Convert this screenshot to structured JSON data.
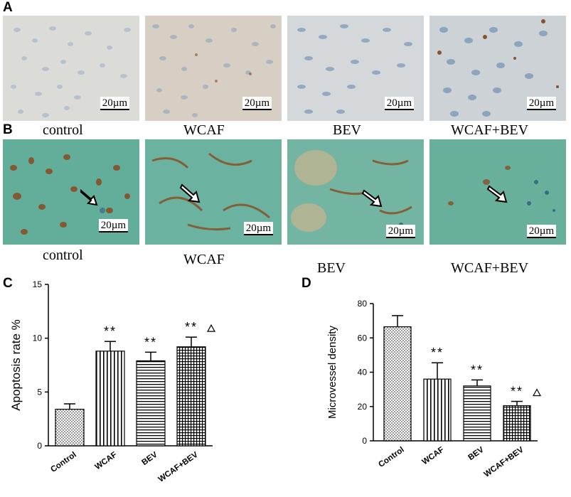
{
  "panels": {
    "a": "A",
    "b": "B",
    "c": "C",
    "d": "D"
  },
  "scale_label": "20µm",
  "row_a_labels": [
    "control",
    "WCAF",
    "BEV",
    "WCAF+BEV"
  ],
  "row_b_labels": [
    "control",
    "WCAF",
    "BEV",
    "WCAF+BEV"
  ],
  "colors": {
    "row_a_bg": "#d9dad8",
    "row_b_bg": "#5faf9a",
    "stain_brown": "#8a4a1e",
    "nuclei": "#6d8fb5"
  },
  "chart_data": [
    {
      "type": "bar",
      "title": "",
      "xlabel": "",
      "ylabel": "Apoptosis rate %",
      "ylim": [
        0,
        15
      ],
      "yticks": [
        "0",
        "5",
        "10",
        "15"
      ],
      "categories": [
        "Control",
        "WCAF",
        "BEV",
        "WCAF+BEV"
      ],
      "values": [
        3.4,
        8.8,
        7.9,
        9.2
      ],
      "errors": [
        0.5,
        0.9,
        0.8,
        0.9
      ],
      "patterns": [
        "dots",
        "vertical",
        "horizontal",
        "grid"
      ],
      "annotations": [
        "",
        "**",
        "**",
        "**"
      ],
      "triangle": [
        false,
        false,
        false,
        true
      ],
      "grid": false
    },
    {
      "type": "bar",
      "title": "",
      "xlabel": "",
      "ylabel": "Microvessel density",
      "ylim": [
        0,
        80
      ],
      "yticks": [
        "0",
        "20",
        "40",
        "60",
        "80"
      ],
      "categories": [
        "Control",
        "WCAF",
        "BEV",
        "WCAF+BEV"
      ],
      "values": [
        66.5,
        36,
        32,
        20.5
      ],
      "errors": [
        6.5,
        9.5,
        3.5,
        2.5
      ],
      "patterns": [
        "dots",
        "vertical",
        "horizontal",
        "grid"
      ],
      "annotations": [
        "",
        "**",
        "**",
        "**"
      ],
      "triangle": [
        false,
        false,
        false,
        true
      ],
      "grid": false
    }
  ]
}
